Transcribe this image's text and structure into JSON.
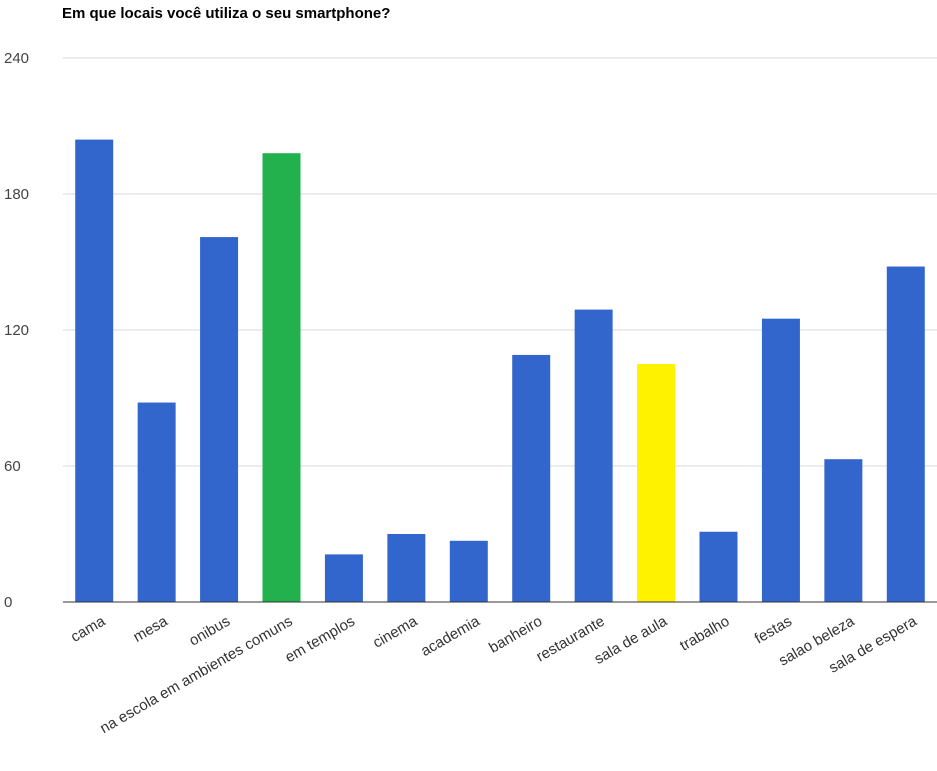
{
  "chart_data": {
    "type": "bar",
    "title": "Em que locais você utiliza o seu smartphone?",
    "categories": [
      "cama",
      "mesa",
      "onibus",
      "na escola em ambientes comuns",
      "em templos",
      "cinema",
      "academia",
      "banheiro",
      "restaurante",
      "sala de aula",
      "trabalho",
      "festas",
      "salao beleza",
      "sala de espera"
    ],
    "values": [
      204,
      88,
      161,
      198,
      21,
      30,
      27,
      109,
      129,
      105,
      31,
      125,
      63,
      148
    ],
    "bar_colors": [
      "#3366cc",
      "#3366cc",
      "#3366cc",
      "#22b14c",
      "#3366cc",
      "#3366cc",
      "#3366cc",
      "#3366cc",
      "#3366cc",
      "#fff200",
      "#3366cc",
      "#3366cc",
      "#3366cc",
      "#3366cc"
    ],
    "yticks": [
      0,
      60,
      120,
      180,
      240
    ],
    "ylim": [
      0,
      240
    ],
    "xlabel": "",
    "ylabel": "",
    "grid": true,
    "legend": "none"
  }
}
